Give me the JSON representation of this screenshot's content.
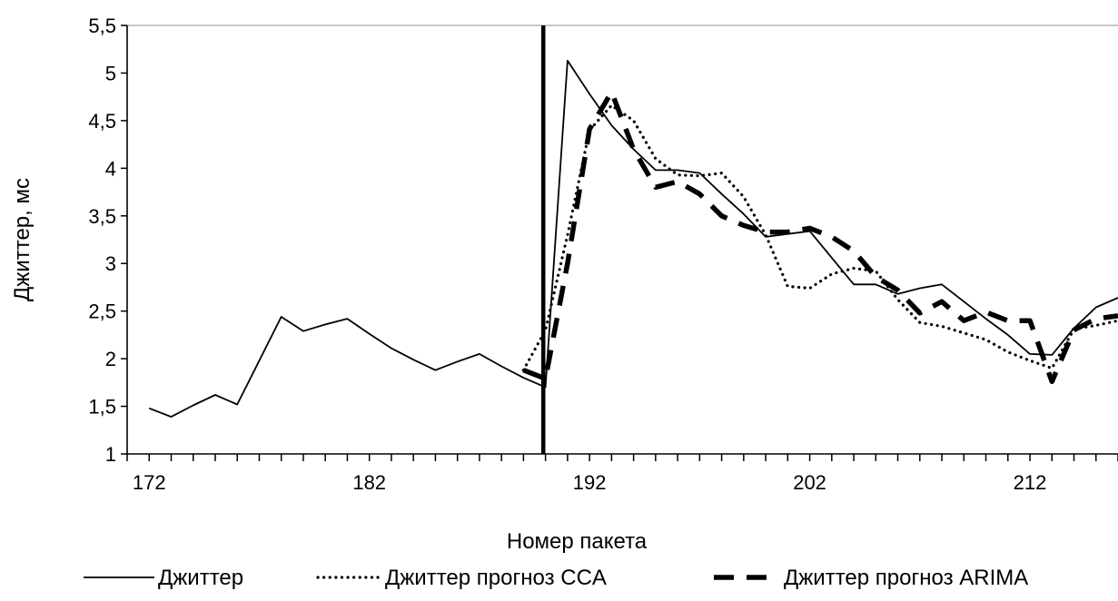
{
  "chart_data": {
    "type": "line",
    "xlabel": "Номер пакета",
    "ylabel": "Джиттер, мс",
    "xlim": [
      171,
      216
    ],
    "ylim": [
      1,
      5.5
    ],
    "x_ticks": [
      172,
      182,
      192,
      202,
      212
    ],
    "y_ticks": [
      {
        "v": 1,
        "label": "1"
      },
      {
        "v": 1.5,
        "label": "1,5"
      },
      {
        "v": 2,
        "label": "2"
      },
      {
        "v": 2.5,
        "label": "2,5"
      },
      {
        "v": 3,
        "label": "3"
      },
      {
        "v": 3.5,
        "label": "3,5"
      },
      {
        "v": 4,
        "label": "4"
      },
      {
        "v": 4.5,
        "label": "4,5"
      },
      {
        "v": 5,
        "label": "5"
      },
      {
        "v": 5.5,
        "label": "5,5"
      }
    ],
    "grid": false,
    "legend_position": "bottom",
    "vertical_marker_x": 189.9,
    "series": [
      {
        "name": "Джиттер",
        "style": "solid",
        "x": [
          172,
          173,
          174,
          175,
          176,
          177,
          178,
          179,
          180,
          181,
          182,
          183,
          184,
          185,
          186,
          187,
          188,
          189,
          190,
          191,
          192,
          193,
          194,
          195,
          196,
          197,
          198,
          199,
          200,
          201,
          202,
          203,
          204,
          205,
          206,
          207,
          208,
          209,
          210,
          211,
          212,
          213,
          214,
          215,
          216
        ],
        "values": [
          1.48,
          1.39,
          1.51,
          1.62,
          1.52,
          1.98,
          2.44,
          2.29,
          2.36,
          2.42,
          2.26,
          2.11,
          1.99,
          1.88,
          1.97,
          2.05,
          1.92,
          1.8,
          1.7,
          5.13,
          4.78,
          4.45,
          4.2,
          3.98,
          3.98,
          3.95,
          3.73,
          3.52,
          3.28,
          3.31,
          3.34,
          3.06,
          2.78,
          2.78,
          2.68,
          2.74,
          2.78,
          2.6,
          2.42,
          2.25,
          2.05,
          2.04,
          2.32,
          2.54,
          2.64
        ]
      },
      {
        "name": "Джиттер прогноз CCA",
        "style": "dotted",
        "x": [
          189,
          190,
          191,
          192,
          193,
          194,
          195,
          196,
          197,
          198,
          199,
          200,
          201,
          202,
          203,
          204,
          205,
          206,
          207,
          208,
          209,
          210,
          211,
          212,
          213,
          214,
          215,
          216
        ],
        "values": [
          1.88,
          2.3,
          3.3,
          4.4,
          4.66,
          4.5,
          4.1,
          3.93,
          3.92,
          3.95,
          3.7,
          3.3,
          2.76,
          2.74,
          2.89,
          2.95,
          2.92,
          2.62,
          2.38,
          2.34,
          2.27,
          2.2,
          2.07,
          1.98,
          1.9,
          2.31,
          2.35,
          2.4
        ]
      },
      {
        "name": "Джиттер прогноз ARIMA",
        "style": "dashed",
        "x": [
          189,
          190,
          191,
          192,
          193,
          194,
          195,
          196,
          197,
          198,
          199,
          200,
          201,
          202,
          203,
          204,
          205,
          206,
          207,
          208,
          209,
          210,
          211,
          212,
          213,
          214,
          215,
          216
        ],
        "values": [
          1.88,
          1.79,
          3.0,
          4.41,
          4.8,
          4.2,
          3.8,
          3.86,
          3.73,
          3.5,
          3.4,
          3.33,
          3.33,
          3.37,
          3.28,
          3.13,
          2.86,
          2.72,
          2.48,
          2.6,
          2.4,
          2.49,
          2.4,
          2.4,
          1.76,
          2.3,
          2.42,
          2.45
        ]
      }
    ]
  }
}
